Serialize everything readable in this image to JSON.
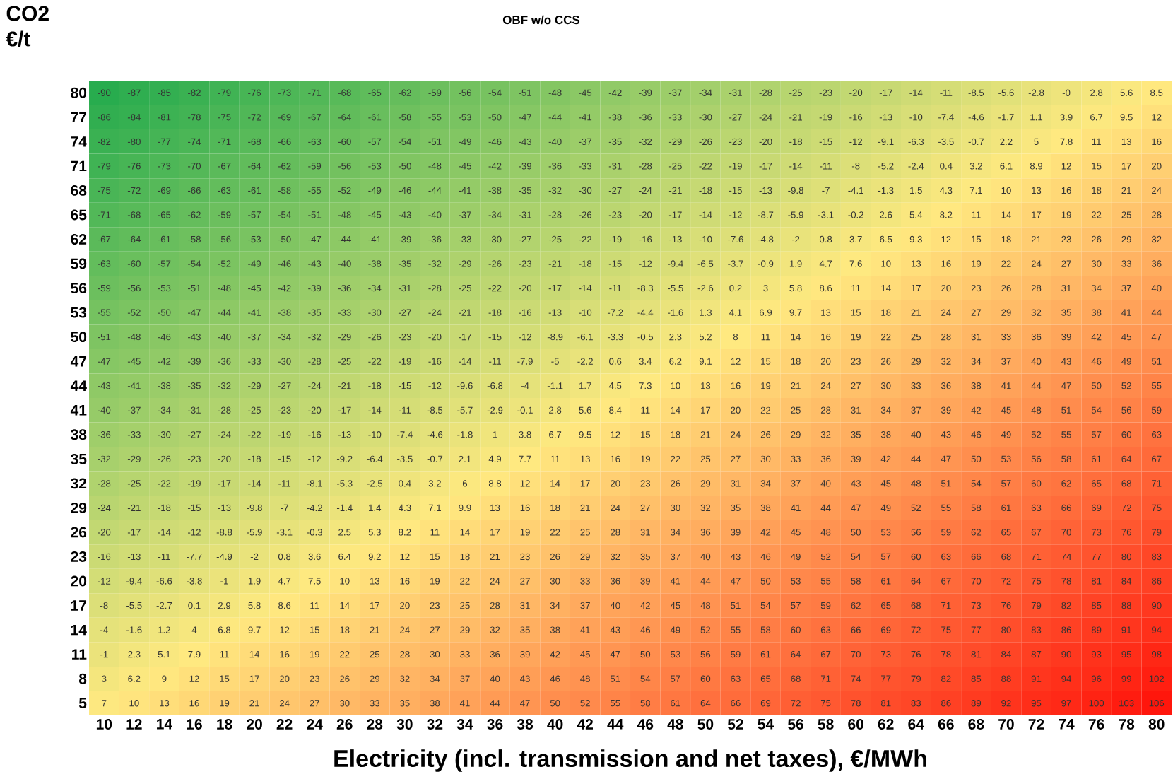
{
  "chart_data": {
    "type": "heatmap",
    "title": "OBF w/o CCS",
    "xlabel": "Electricity (incl. transmission and net taxes), €/MWh",
    "ylabel": "CO2 €/t",
    "categories": [
      "10",
      "12",
      "14",
      "16",
      "18",
      "20",
      "22",
      "24",
      "26",
      "28",
      "30",
      "32",
      "34",
      "36",
      "38",
      "40",
      "42",
      "44",
      "46",
      "48",
      "50",
      "52",
      "54",
      "56",
      "58",
      "60",
      "62",
      "64",
      "66",
      "68",
      "70",
      "72",
      "74",
      "76",
      "78",
      "80"
    ],
    "y_categories": [
      "80",
      "77",
      "74",
      "71",
      "68",
      "65",
      "62",
      "59",
      "56",
      "53",
      "50",
      "47",
      "44",
      "41",
      "38",
      "35",
      "32",
      "29",
      "26",
      "23",
      "20",
      "17",
      "14",
      "11",
      "8",
      "5"
    ],
    "data_labels": true,
    "cells": [
      [
        -90,
        -87,
        -85,
        -82,
        -79,
        -76,
        -73,
        -71,
        -68,
        -65,
        -62,
        -59,
        -56,
        -54,
        -51,
        -48,
        -45,
        -42,
        -39,
        -37,
        -34,
        -31,
        -28,
        -25,
        -23,
        -20,
        -17,
        -14,
        -11,
        -8.5,
        -5.6,
        -2.8,
        0,
        2.8,
        5.6,
        8.5
      ],
      [
        -86,
        -84,
        -81,
        -78,
        -75,
        -72,
        -69,
        -67,
        -64,
        -61,
        -58,
        -55,
        -53,
        -50,
        -47,
        -44,
        -41,
        -38,
        -36,
        -33,
        -30,
        -27,
        -24,
        -21,
        -19,
        -16,
        -13,
        -10,
        -7.4,
        -4.6,
        -1.7,
        1.1,
        3.9,
        6.7,
        9.5,
        12
      ],
      [
        -82,
        -80,
        -77,
        -74,
        -71,
        -68,
        -66,
        -63,
        -60,
        -57,
        -54,
        -51,
        -49,
        -46,
        -43,
        -40,
        -37,
        -35,
        -32,
        -29,
        -26,
        -23,
        -20,
        -18,
        -15,
        -12,
        -9.1,
        -6.3,
        -3.5,
        -0.7,
        2.2,
        5,
        7.8,
        11,
        13,
        16
      ],
      [
        -79,
        -76,
        -73,
        -70,
        -67,
        -64,
        -62,
        -59,
        -56,
        -53,
        -50,
        -48,
        -45,
        -42,
        -39,
        -36,
        -33,
        -31,
        -28,
        -25,
        -22,
        -19,
        -17,
        -14,
        -11,
        -8,
        -5.2,
        -2.4,
        0.4,
        3.2,
        6.1,
        8.9,
        12,
        15,
        17,
        20
      ],
      [
        -75,
        -72,
        -69,
        -66,
        -63,
        -61,
        -58,
        -55,
        -52,
        -49,
        -46,
        -44,
        -41,
        -38,
        -35,
        -32,
        -30,
        -27,
        -24,
        -21,
        -18,
        -15,
        -13,
        -9.8,
        -7,
        -4.1,
        -1.3,
        1.5,
        4.3,
        7.1,
        10,
        13,
        16,
        18,
        21,
        24
      ],
      [
        -71,
        -68,
        -65,
        -62,
        -59,
        -57,
        -54,
        -51,
        -48,
        -45,
        -43,
        -40,
        -37,
        -34,
        -31,
        -28,
        -26,
        -23,
        -20,
        -17,
        -14,
        -12,
        -8.7,
        -5.9,
        -3.1,
        -0.2,
        2.6,
        5.4,
        8.2,
        11,
        14,
        17,
        19,
        22,
        25,
        28
      ],
      [
        -67,
        -64,
        -61,
        -58,
        -56,
        -53,
        -50,
        -47,
        -44,
        -41,
        -39,
        -36,
        -33,
        -30,
        -27,
        -25,
        -22,
        -19,
        -16,
        -13,
        -10,
        -7.6,
        -4.8,
        -2,
        0.8,
        3.7,
        6.5,
        9.3,
        12,
        15,
        18,
        21,
        23,
        26,
        29,
        32
      ],
      [
        -63,
        -60,
        -57,
        -54,
        -52,
        -49,
        -46,
        -43,
        -40,
        -38,
        -35,
        -32,
        -29,
        -26,
        -23,
        -21,
        -18,
        -15,
        -12,
        -9.4,
        -6.5,
        -3.7,
        -0.9,
        1.9,
        4.7,
        7.6,
        10,
        13,
        16,
        19,
        22,
        24,
        27,
        30,
        33,
        36
      ],
      [
        -59,
        -56,
        -53,
        -51,
        -48,
        -45,
        -42,
        -39,
        -36,
        -34,
        -31,
        -28,
        -25,
        -22,
        -20,
        -17,
        -14,
        -11,
        -8.3,
        -5.5,
        -2.6,
        0.2,
        3,
        5.8,
        8.6,
        11,
        14,
        17,
        20,
        23,
        26,
        28,
        31,
        34,
        37,
        40
      ],
      [
        -55,
        -52,
        -50,
        -47,
        -44,
        -41,
        -38,
        -35,
        -33,
        -30,
        -27,
        -24,
        -21,
        -18,
        -16,
        -13,
        -10,
        -7.2,
        -4.4,
        -1.6,
        1.3,
        4.1,
        6.9,
        9.7,
        13,
        15,
        18,
        21,
        24,
        27,
        29,
        32,
        35,
        38,
        41,
        44
      ],
      [
        -51,
        -48,
        -46,
        -43,
        -40,
        -37,
        -34,
        -32,
        -29,
        -26,
        -23,
        -20,
        -17,
        -15,
        -12,
        -8.9,
        -6.1,
        -3.3,
        -0.5,
        2.3,
        5.2,
        8,
        11,
        14,
        16,
        19,
        22,
        25,
        28,
        31,
        33,
        36,
        39,
        42,
        45,
        47
      ],
      [
        -47,
        -45,
        -42,
        -39,
        -36,
        -33,
        -30,
        -28,
        -25,
        -22,
        -19,
        -16,
        -14,
        -11,
        -7.9,
        -5,
        -2.2,
        0.6,
        3.4,
        6.2,
        9.1,
        12,
        15,
        18,
        20,
        23,
        26,
        29,
        32,
        34,
        37,
        40,
        43,
        46,
        49,
        51
      ],
      [
        -43,
        -41,
        -38,
        -35,
        -32,
        -29,
        -27,
        -24,
        -21,
        -18,
        -15,
        -12,
        -9.6,
        -6.8,
        -4,
        -1.1,
        1.7,
        4.5,
        7.3,
        10,
        13,
        16,
        19,
        21,
        24,
        27,
        30,
        33,
        36,
        38,
        41,
        44,
        47,
        50,
        52,
        55
      ],
      [
        -40,
        -37,
        -34,
        -31,
        -28,
        -25,
        -23,
        -20,
        -17,
        -14,
        -11,
        -8.5,
        -5.7,
        -2.9,
        -0.1,
        2.8,
        5.6,
        8.4,
        11,
        14,
        17,
        20,
        22,
        25,
        28,
        31,
        34,
        37,
        39,
        42,
        45,
        48,
        51,
        54,
        56,
        59
      ],
      [
        -36,
        -33,
        -30,
        -27,
        -24,
        -22,
        -19,
        -16,
        -13,
        -10,
        -7.4,
        -4.6,
        -1.8,
        1,
        3.8,
        6.7,
        9.5,
        12,
        15,
        18,
        21,
        24,
        26,
        29,
        32,
        35,
        38,
        40,
        43,
        46,
        49,
        52,
        55,
        57,
        60,
        63
      ],
      [
        -32,
        -29,
        -26,
        -23,
        -20,
        -18,
        -15,
        -12,
        -9.2,
        -6.4,
        -3.5,
        -0.7,
        2.1,
        4.9,
        7.7,
        11,
        13,
        16,
        19,
        22,
        25,
        27,
        30,
        33,
        36,
        39,
        42,
        44,
        47,
        50,
        53,
        56,
        58,
        61,
        64,
        67
      ],
      [
        -28,
        -25,
        -22,
        -19,
        -17,
        -14,
        -11,
        -8.1,
        -5.3,
        -2.5,
        0.4,
        3.2,
        6,
        8.8,
        12,
        14,
        17,
        20,
        23,
        26,
        29,
        31,
        34,
        37,
        40,
        43,
        45,
        48,
        51,
        54,
        57,
        60,
        62,
        65,
        68,
        71
      ],
      [
        -24,
        -21,
        -18,
        -15,
        -13,
        -9.8,
        -7,
        -4.2,
        -1.4,
        1.4,
        4.3,
        7.1,
        9.9,
        13,
        16,
        18,
        21,
        24,
        27,
        30,
        32,
        35,
        38,
        41,
        44,
        47,
        49,
        52,
        55,
        58,
        61,
        63,
        66,
        69,
        72,
        75
      ],
      [
        -20,
        -17,
        -14,
        -12,
        -8.8,
        -5.9,
        -3.1,
        -0.3,
        2.5,
        5.3,
        8.2,
        11,
        14,
        17,
        19,
        22,
        25,
        28,
        31,
        34,
        36,
        39,
        42,
        45,
        48,
        50,
        53,
        56,
        59,
        62,
        65,
        67,
        70,
        73,
        76,
        79
      ],
      [
        -16,
        -13,
        -11,
        -7.7,
        -4.9,
        -2,
        0.8,
        3.6,
        6.4,
        9.2,
        12,
        15,
        18,
        21,
        23,
        26,
        29,
        32,
        35,
        37,
        40,
        43,
        46,
        49,
        52,
        54,
        57,
        60,
        63,
        66,
        68,
        71,
        74,
        77,
        80,
        83
      ],
      [
        -12,
        -9.4,
        -6.6,
        -3.8,
        -1,
        1.9,
        4.7,
        7.5,
        10,
        13,
        16,
        19,
        22,
        24,
        27,
        30,
        33,
        36,
        39,
        41,
        44,
        47,
        50,
        53,
        55,
        58,
        61,
        64,
        67,
        70,
        72,
        75,
        78,
        81,
        84,
        86
      ],
      [
        -8,
        -5.5,
        -2.7,
        0.1,
        2.9,
        5.8,
        8.6,
        11,
        14,
        17,
        20,
        23,
        25,
        28,
        31,
        34,
        37,
        40,
        42,
        45,
        48,
        51,
        54,
        57,
        59,
        62,
        65,
        68,
        71,
        73,
        76,
        79,
        82,
        85,
        88,
        90
      ],
      [
        -4,
        -1.6,
        1.2,
        4,
        6.8,
        9.7,
        12,
        15,
        18,
        21,
        24,
        27,
        29,
        32,
        35,
        38,
        41,
        43,
        46,
        49,
        52,
        55,
        58,
        60,
        63,
        66,
        69,
        72,
        75,
        77,
        80,
        83,
        86,
        89,
        91,
        94
      ],
      [
        -1,
        2.3,
        5.1,
        7.9,
        11,
        14,
        16,
        19,
        22,
        25,
        28,
        30,
        33,
        36,
        39,
        42,
        45,
        47,
        50,
        53,
        56,
        59,
        61,
        64,
        67,
        70,
        73,
        76,
        78,
        81,
        84,
        87,
        90,
        93,
        95,
        98
      ],
      [
        3,
        6.2,
        9,
        12,
        15,
        17,
        20,
        23,
        26,
        29,
        32,
        34,
        37,
        40,
        43,
        46,
        48,
        51,
        54,
        57,
        60,
        63,
        65,
        68,
        71,
        74,
        77,
        79,
        82,
        85,
        88,
        91,
        94,
        96,
        99,
        102
      ],
      [
        7,
        10,
        13,
        16,
        19,
        21,
        24,
        27,
        30,
        33,
        35,
        38,
        41,
        44,
        47,
        50,
        52,
        55,
        58,
        61,
        64,
        66,
        69,
        72,
        75,
        78,
        81,
        83,
        86,
        89,
        92,
        95,
        97,
        100,
        103,
        106
      ]
    ],
    "cell_labels": [
      [
        "-90",
        "-87",
        "-85",
        "-82",
        "-79",
        "-76",
        "-73",
        "-71",
        "-68",
        "-65",
        "-62",
        "-59",
        "-56",
        "-54",
        "-51",
        "-48",
        "-45",
        "-42",
        "-39",
        "-37",
        "-34",
        "-31",
        "-28",
        "-25",
        "-23",
        "-20",
        "-17",
        "-14",
        "-11",
        "-8.5",
        "-5.6",
        "-2.8",
        "-0",
        "2.8",
        "5.6",
        "8.5"
      ],
      [
        "-86",
        "-84",
        "-81",
        "-78",
        "-75",
        "-72",
        "-69",
        "-67",
        "-64",
        "-61",
        "-58",
        "-55",
        "-53",
        "-50",
        "-47",
        "-44",
        "-41",
        "-38",
        "-36",
        "-33",
        "-30",
        "-27",
        "-24",
        "-21",
        "-19",
        "-16",
        "-13",
        "-10",
        "-7.4",
        "-4.6",
        "-1.7",
        "1.1",
        "3.9",
        "6.7",
        "9.5",
        "12"
      ],
      [
        "-82",
        "-80",
        "-77",
        "-74",
        "-71",
        "-68",
        "-66",
        "-63",
        "-60",
        "-57",
        "-54",
        "-51",
        "-49",
        "-46",
        "-43",
        "-40",
        "-37",
        "-35",
        "-32",
        "-29",
        "-26",
        "-23",
        "-20",
        "-18",
        "-15",
        "-12",
        "-9.1",
        "-6.3",
        "-3.5",
        "-0.7",
        "2.2",
        "5",
        "7.8",
        "11",
        "13",
        "16"
      ],
      [
        "-79",
        "-76",
        "-73",
        "-70",
        "-67",
        "-64",
        "-62",
        "-59",
        "-56",
        "-53",
        "-50",
        "-48",
        "-45",
        "-42",
        "-39",
        "-36",
        "-33",
        "-31",
        "-28",
        "-25",
        "-22",
        "-19",
        "-17",
        "-14",
        "-11",
        "-8",
        "-5.2",
        "-2.4",
        "0.4",
        "3.2",
        "6.1",
        "8.9",
        "12",
        "15",
        "17",
        "20"
      ],
      [
        "-75",
        "-72",
        "-69",
        "-66",
        "-63",
        "-61",
        "-58",
        "-55",
        "-52",
        "-49",
        "-46",
        "-44",
        "-41",
        "-38",
        "-35",
        "-32",
        "-30",
        "-27",
        "-24",
        "-21",
        "-18",
        "-15",
        "-13",
        "-9.8",
        "-7",
        "-4.1",
        "-1.3",
        "1.5",
        "4.3",
        "7.1",
        "10",
        "13",
        "16",
        "18",
        "21",
        "24"
      ],
      [
        "-71",
        "-68",
        "-65",
        "-62",
        "-59",
        "-57",
        "-54",
        "-51",
        "-48",
        "-45",
        "-43",
        "-40",
        "-37",
        "-34",
        "-31",
        "-28",
        "-26",
        "-23",
        "-20",
        "-17",
        "-14",
        "-12",
        "-8.7",
        "-5.9",
        "-3.1",
        "-0.2",
        "2.6",
        "5.4",
        "8.2",
        "11",
        "14",
        "17",
        "19",
        "22",
        "25",
        "28"
      ],
      [
        "-67",
        "-64",
        "-61",
        "-58",
        "-56",
        "-53",
        "-50",
        "-47",
        "-44",
        "-41",
        "-39",
        "-36",
        "-33",
        "-30",
        "-27",
        "-25",
        "-22",
        "-19",
        "-16",
        "-13",
        "-10",
        "-7.6",
        "-4.8",
        "-2",
        "0.8",
        "3.7",
        "6.5",
        "9.3",
        "12",
        "15",
        "18",
        "21",
        "23",
        "26",
        "29",
        "32"
      ],
      [
        "-63",
        "-60",
        "-57",
        "-54",
        "-52",
        "-49",
        "-46",
        "-43",
        "-40",
        "-38",
        "-35",
        "-32",
        "-29",
        "-26",
        "-23",
        "-21",
        "-18",
        "-15",
        "-12",
        "-9.4",
        "-6.5",
        "-3.7",
        "-0.9",
        "1.9",
        "4.7",
        "7.6",
        "10",
        "13",
        "16",
        "19",
        "22",
        "24",
        "27",
        "30",
        "33",
        "36"
      ],
      [
        "-59",
        "-56",
        "-53",
        "-51",
        "-48",
        "-45",
        "-42",
        "-39",
        "-36",
        "-34",
        "-31",
        "-28",
        "-25",
        "-22",
        "-20",
        "-17",
        "-14",
        "-11",
        "-8.3",
        "-5.5",
        "-2.6",
        "0.2",
        "3",
        "5.8",
        "8.6",
        "11",
        "14",
        "17",
        "20",
        "23",
        "26",
        "28",
        "31",
        "34",
        "37",
        "40"
      ],
      [
        "-55",
        "-52",
        "-50",
        "-47",
        "-44",
        "-41",
        "-38",
        "-35",
        "-33",
        "-30",
        "-27",
        "-24",
        "-21",
        "-18",
        "-16",
        "-13",
        "-10",
        "-7.2",
        "-4.4",
        "-1.6",
        "1.3",
        "4.1",
        "6.9",
        "9.7",
        "13",
        "15",
        "18",
        "21",
        "24",
        "27",
        "29",
        "32",
        "35",
        "38",
        "41",
        "44"
      ],
      [
        "-51",
        "-48",
        "-46",
        "-43",
        "-40",
        "-37",
        "-34",
        "-32",
        "-29",
        "-26",
        "-23",
        "-20",
        "-17",
        "-15",
        "-12",
        "-8.9",
        "-6.1",
        "-3.3",
        "-0.5",
        "2.3",
        "5.2",
        "8",
        "11",
        "14",
        "16",
        "19",
        "22",
        "25",
        "28",
        "31",
        "33",
        "36",
        "39",
        "42",
        "45",
        "47"
      ],
      [
        "-47",
        "-45",
        "-42",
        "-39",
        "-36",
        "-33",
        "-30",
        "-28",
        "-25",
        "-22",
        "-19",
        "-16",
        "-14",
        "-11",
        "-7.9",
        "-5",
        "-2.2",
        "0.6",
        "3.4",
        "6.2",
        "9.1",
        "12",
        "15",
        "18",
        "20",
        "23",
        "26",
        "29",
        "32",
        "34",
        "37",
        "40",
        "43",
        "46",
        "49",
        "51"
      ],
      [
        "-43",
        "-41",
        "-38",
        "-35",
        "-32",
        "-29",
        "-27",
        "-24",
        "-21",
        "-18",
        "-15",
        "-12",
        "-9.6",
        "-6.8",
        "-4",
        "-1.1",
        "1.7",
        "4.5",
        "7.3",
        "10",
        "13",
        "16",
        "19",
        "21",
        "24",
        "27",
        "30",
        "33",
        "36",
        "38",
        "41",
        "44",
        "47",
        "50",
        "52",
        "55"
      ],
      [
        "-40",
        "-37",
        "-34",
        "-31",
        "-28",
        "-25",
        "-23",
        "-20",
        "-17",
        "-14",
        "-11",
        "-8.5",
        "-5.7",
        "-2.9",
        "-0.1",
        "2.8",
        "5.6",
        "8.4",
        "11",
        "14",
        "17",
        "20",
        "22",
        "25",
        "28",
        "31",
        "34",
        "37",
        "39",
        "42",
        "45",
        "48",
        "51",
        "54",
        "56",
        "59"
      ],
      [
        "-36",
        "-33",
        "-30",
        "-27",
        "-24",
        "-22",
        "-19",
        "-16",
        "-13",
        "-10",
        "-7.4",
        "-4.6",
        "-1.8",
        "1",
        "3.8",
        "6.7",
        "9.5",
        "12",
        "15",
        "18",
        "21",
        "24",
        "26",
        "29",
        "32",
        "35",
        "38",
        "40",
        "43",
        "46",
        "49",
        "52",
        "55",
        "57",
        "60",
        "63"
      ],
      [
        "-32",
        "-29",
        "-26",
        "-23",
        "-20",
        "-18",
        "-15",
        "-12",
        "-9.2",
        "-6.4",
        "-3.5",
        "-0.7",
        "2.1",
        "4.9",
        "7.7",
        "11",
        "13",
        "16",
        "19",
        "22",
        "25",
        "27",
        "30",
        "33",
        "36",
        "39",
        "42",
        "44",
        "47",
        "50",
        "53",
        "56",
        "58",
        "61",
        "64",
        "67"
      ],
      [
        "-28",
        "-25",
        "-22",
        "-19",
        "-17",
        "-14",
        "-11",
        "-8.1",
        "-5.3",
        "-2.5",
        "0.4",
        "3.2",
        "6",
        "8.8",
        "12",
        "14",
        "17",
        "20",
        "23",
        "26",
        "29",
        "31",
        "34",
        "37",
        "40",
        "43",
        "45",
        "48",
        "51",
        "54",
        "57",
        "60",
        "62",
        "65",
        "68",
        "71"
      ],
      [
        "-24",
        "-21",
        "-18",
        "-15",
        "-13",
        "-9.8",
        "-7",
        "-4.2",
        "-1.4",
        "1.4",
        "4.3",
        "7.1",
        "9.9",
        "13",
        "16",
        "18",
        "21",
        "24",
        "27",
        "30",
        "32",
        "35",
        "38",
        "41",
        "44",
        "47",
        "49",
        "52",
        "55",
        "58",
        "61",
        "63",
        "66",
        "69",
        "72",
        "75"
      ],
      [
        "-20",
        "-17",
        "-14",
        "-12",
        "-8.8",
        "-5.9",
        "-3.1",
        "-0.3",
        "2.5",
        "5.3",
        "8.2",
        "11",
        "14",
        "17",
        "19",
        "22",
        "25",
        "28",
        "31",
        "34",
        "36",
        "39",
        "42",
        "45",
        "48",
        "50",
        "53",
        "56",
        "59",
        "62",
        "65",
        "67",
        "70",
        "73",
        "76",
        "79"
      ],
      [
        "-16",
        "-13",
        "-11",
        "-7.7",
        "-4.9",
        "-2",
        "0.8",
        "3.6",
        "6.4",
        "9.2",
        "12",
        "15",
        "18",
        "21",
        "23",
        "26",
        "29",
        "32",
        "35",
        "37",
        "40",
        "43",
        "46",
        "49",
        "52",
        "54",
        "57",
        "60",
        "63",
        "66",
        "68",
        "71",
        "74",
        "77",
        "80",
        "83"
      ],
      [
        "-12",
        "-9.4",
        "-6.6",
        "-3.8",
        "-1",
        "1.9",
        "4.7",
        "7.5",
        "10",
        "13",
        "16",
        "19",
        "22",
        "24",
        "27",
        "30",
        "33",
        "36",
        "39",
        "41",
        "44",
        "47",
        "50",
        "53",
        "55",
        "58",
        "61",
        "64",
        "67",
        "70",
        "72",
        "75",
        "78",
        "81",
        "84",
        "86"
      ],
      [
        "-8",
        "-5.5",
        "-2.7",
        "0.1",
        "2.9",
        "5.8",
        "8.6",
        "11",
        "14",
        "17",
        "20",
        "23",
        "25",
        "28",
        "31",
        "34",
        "37",
        "40",
        "42",
        "45",
        "48",
        "51",
        "54",
        "57",
        "59",
        "62",
        "65",
        "68",
        "71",
        "73",
        "76",
        "79",
        "82",
        "85",
        "88",
        "90"
      ],
      [
        "-4",
        "-1.6",
        "1.2",
        "4",
        "6.8",
        "9.7",
        "12",
        "15",
        "18",
        "21",
        "24",
        "27",
        "29",
        "32",
        "35",
        "38",
        "41",
        "43",
        "46",
        "49",
        "52",
        "55",
        "58",
        "60",
        "63",
        "66",
        "69",
        "72",
        "75",
        "77",
        "80",
        "83",
        "86",
        "89",
        "91",
        "94"
      ],
      [
        "-1",
        "2.3",
        "5.1",
        "7.9",
        "11",
        "14",
        "16",
        "19",
        "22",
        "25",
        "28",
        "30",
        "33",
        "36",
        "39",
        "42",
        "45",
        "47",
        "50",
        "53",
        "56",
        "59",
        "61",
        "64",
        "67",
        "70",
        "73",
        "76",
        "78",
        "81",
        "84",
        "87",
        "90",
        "93",
        "95",
        "98"
      ],
      [
        "3",
        "6.2",
        "9",
        "12",
        "15",
        "17",
        "20",
        "23",
        "26",
        "29",
        "32",
        "34",
        "37",
        "40",
        "43",
        "46",
        "48",
        "51",
        "54",
        "57",
        "60",
        "63",
        "65",
        "68",
        "71",
        "74",
        "77",
        "79",
        "82",
        "85",
        "88",
        "91",
        "94",
        "96",
        "99",
        "102"
      ],
      [
        "7",
        "10",
        "13",
        "16",
        "19",
        "21",
        "24",
        "27",
        "30",
        "33",
        "35",
        "38",
        "41",
        "44",
        "47",
        "50",
        "52",
        "55",
        "58",
        "61",
        "64",
        "66",
        "69",
        "72",
        "75",
        "78",
        "81",
        "83",
        "86",
        "89",
        "92",
        "95",
        "97",
        "100",
        "103",
        "106"
      ]
    ]
  }
}
